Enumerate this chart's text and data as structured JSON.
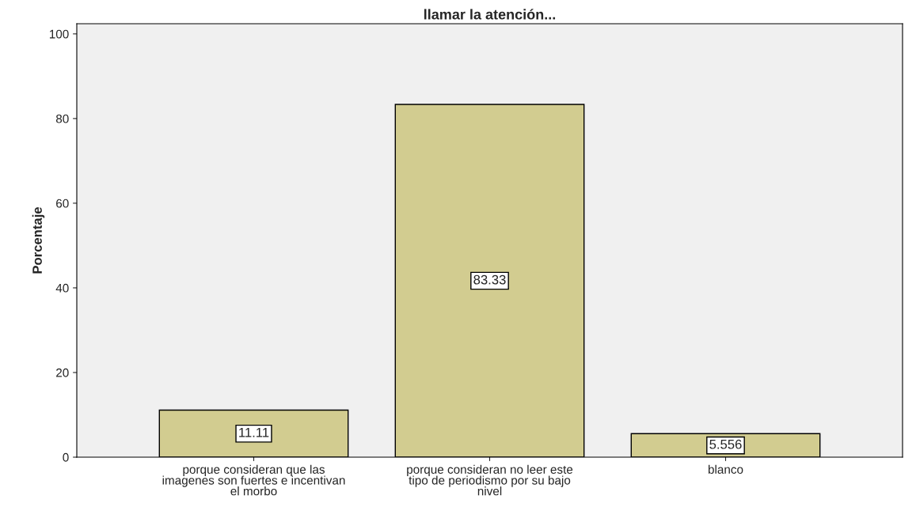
{
  "chart_data": {
    "type": "bar",
    "title": "llamar la atención...",
    "ylabel": "Porcentaje",
    "categories": [
      "porque consideran que las\nimagenes son fuertes e incentivan\nel morbo",
      "porque consideran no leer este\ntipo de periodismo por su bajo\nnivel",
      "blanco"
    ],
    "values": [
      11.11,
      83.33,
      5.556
    ],
    "color": "#d2cc90",
    "value_labels": [
      "11.11",
      "83.33",
      "5.556"
    ],
    "ylim": [
      0,
      102.4
    ],
    "yticks": [
      0,
      20,
      40,
      60,
      80,
      100
    ],
    "grid": false
  }
}
